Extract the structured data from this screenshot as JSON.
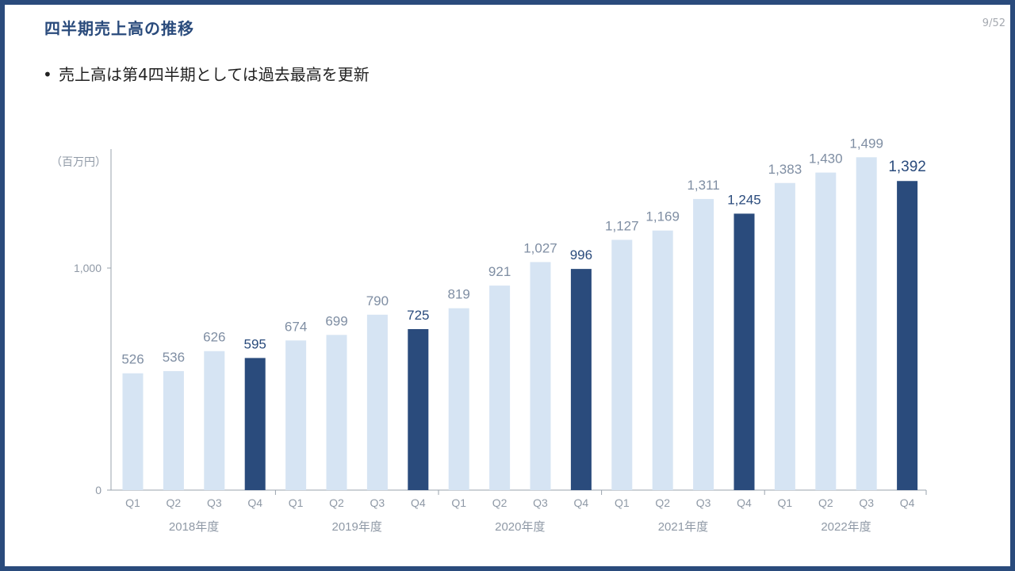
{
  "header": {
    "title": "四半期売上高の推移",
    "page_number": "9/52"
  },
  "body": {
    "bullet_marker": "•",
    "bullet_text": "売上高は第4四半期としては過去最高を更新"
  },
  "chart_data": {
    "type": "bar",
    "unit_label": "（百万円）",
    "y_ticks": [
      {
        "value": 0,
        "label": "0"
      },
      {
        "value": 1000,
        "label": "1,000"
      }
    ],
    "ylim": [
      0,
      1600
    ],
    "grid": false,
    "groups": [
      {
        "label": "2018年度",
        "quarters": [
          "Q1",
          "Q2",
          "Q3",
          "Q4"
        ],
        "values": [
          526,
          536,
          626,
          595
        ],
        "value_labels": [
          "526",
          "536",
          "626",
          "595"
        ]
      },
      {
        "label": "2019年度",
        "quarters": [
          "Q1",
          "Q2",
          "Q3",
          "Q4"
        ],
        "values": [
          674,
          699,
          790,
          725
        ],
        "value_labels": [
          "674",
          "699",
          "790",
          "725"
        ]
      },
      {
        "label": "2020年度",
        "quarters": [
          "Q1",
          "Q2",
          "Q3",
          "Q4"
        ],
        "values": [
          819,
          921,
          1027,
          996
        ],
        "value_labels": [
          "819",
          "921",
          "1,027",
          "996"
        ]
      },
      {
        "label": "2021年度",
        "quarters": [
          "Q1",
          "Q2",
          "Q3",
          "Q4"
        ],
        "values": [
          1127,
          1169,
          1311,
          1245
        ],
        "value_labels": [
          "1,127",
          "1,169",
          "1,311",
          "1,245"
        ]
      },
      {
        "label": "2022年度",
        "quarters": [
          "Q1",
          "Q2",
          "Q3",
          "Q4"
        ],
        "values": [
          1383,
          1430,
          1499,
          1392
        ],
        "value_labels": [
          "1,383",
          "1,430",
          "1,499",
          "1,392"
        ]
      }
    ],
    "colors": {
      "bar_q1_q3": "#d6e4f3",
      "bar_q4": "#2a4b7c",
      "label_q1_q3": "#7f8ea3",
      "label_q4": "#2a4b7c",
      "axis": "#9aa3ad",
      "tick_text": "#8f99a6"
    }
  }
}
